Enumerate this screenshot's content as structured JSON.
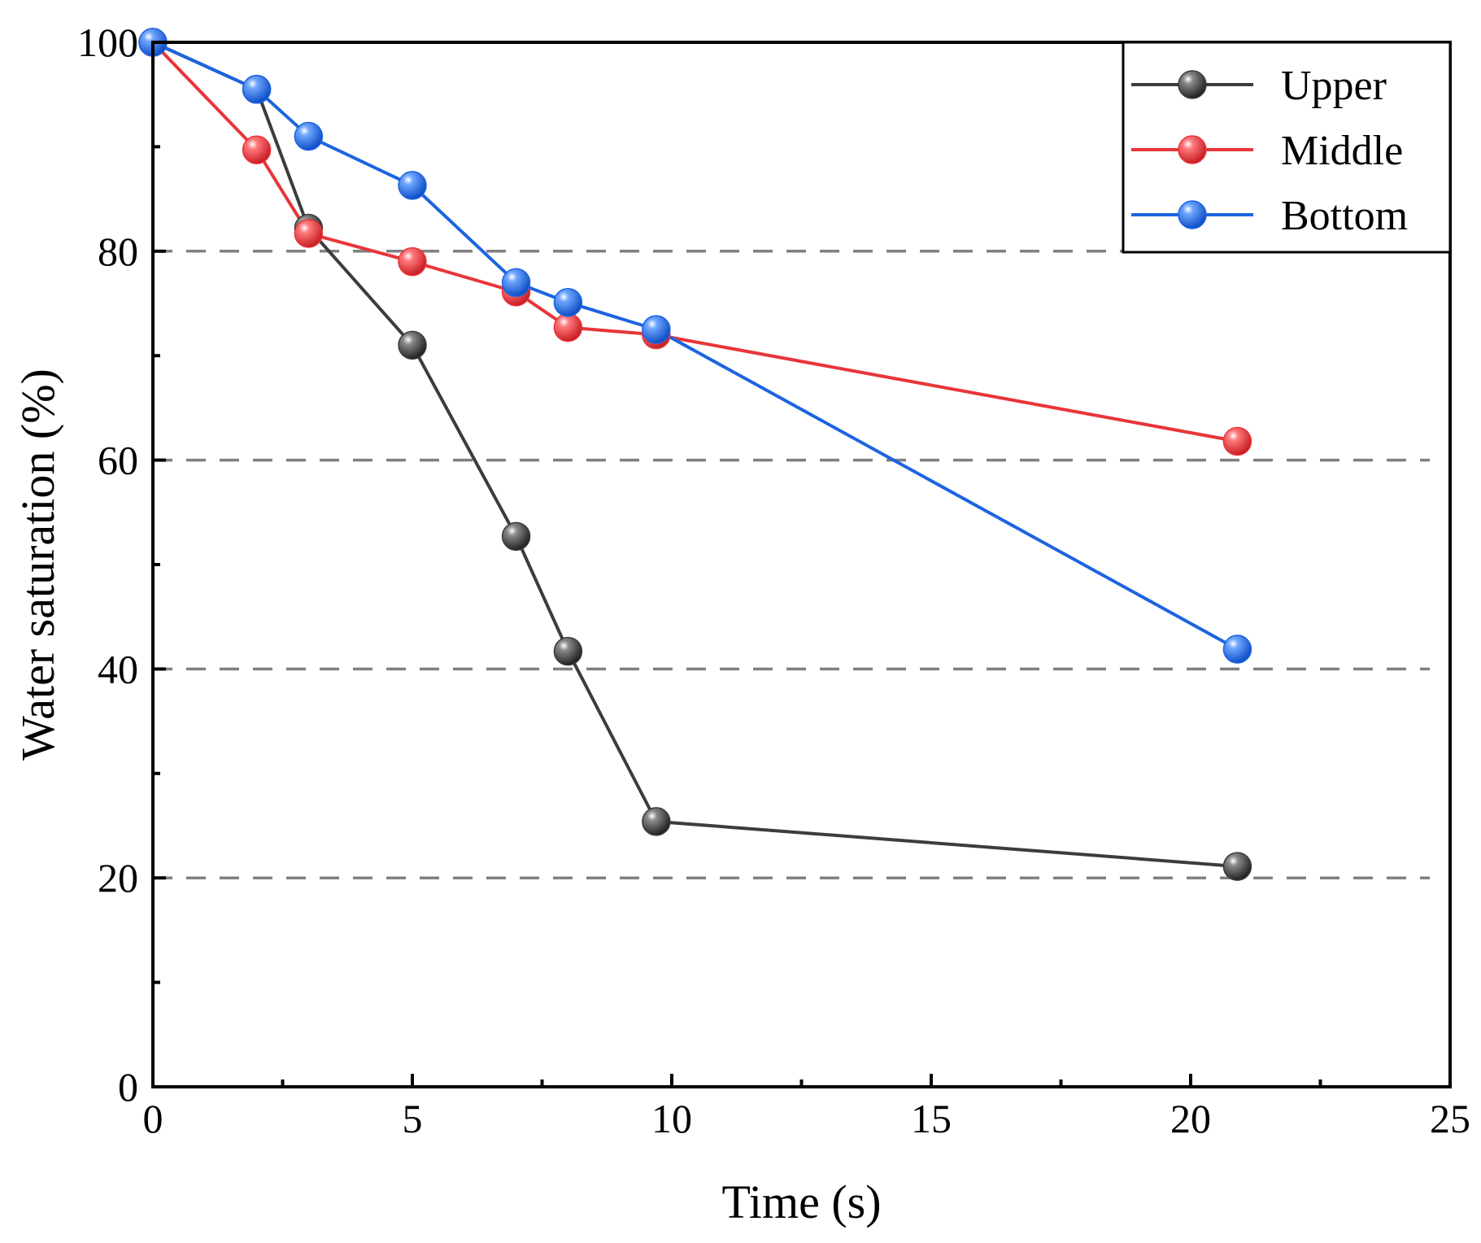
{
  "chart_data": {
    "type": "line",
    "title": "",
    "xlabel": "Time (s)",
    "ylabel": "Water saturation (%)",
    "xlim": [
      0,
      25
    ],
    "ylim": [
      0,
      100
    ],
    "x_ticks": [
      0,
      5,
      10,
      15,
      20,
      25
    ],
    "x_tick_labels": [
      "0",
      "5",
      "10",
      "15",
      "20",
      "25"
    ],
    "y_ticks": [
      0,
      20,
      40,
      60,
      80,
      100
    ],
    "y_tick_labels": [
      "0",
      "20",
      "40",
      "60",
      "80",
      "100"
    ],
    "gridlines_y": [
      20,
      40,
      60,
      80
    ],
    "legend_position": "top-right",
    "series": [
      {
        "name": "Upper",
        "color": "#3c3c3c",
        "x": [
          0,
          2,
          3,
          5,
          7,
          8,
          9.7,
          20.9
        ],
        "y": [
          100,
          95.5,
          82.2,
          71.0,
          52.7,
          41.7,
          25.4,
          21.1
        ]
      },
      {
        "name": "Middle",
        "color": "#e8353a",
        "x": [
          0,
          2,
          3,
          5,
          7,
          8,
          9.7,
          20.9
        ],
        "y": [
          100,
          89.7,
          81.7,
          79.0,
          76.1,
          72.7,
          72.0,
          61.8
        ]
      },
      {
        "name": "Bottom",
        "color": "#1c64e0",
        "x": [
          0,
          2,
          3,
          5,
          7,
          8,
          9.7,
          20.9
        ],
        "y": [
          100,
          95.5,
          91.0,
          86.3,
          77.0,
          75.1,
          72.5,
          41.9
        ]
      }
    ]
  }
}
